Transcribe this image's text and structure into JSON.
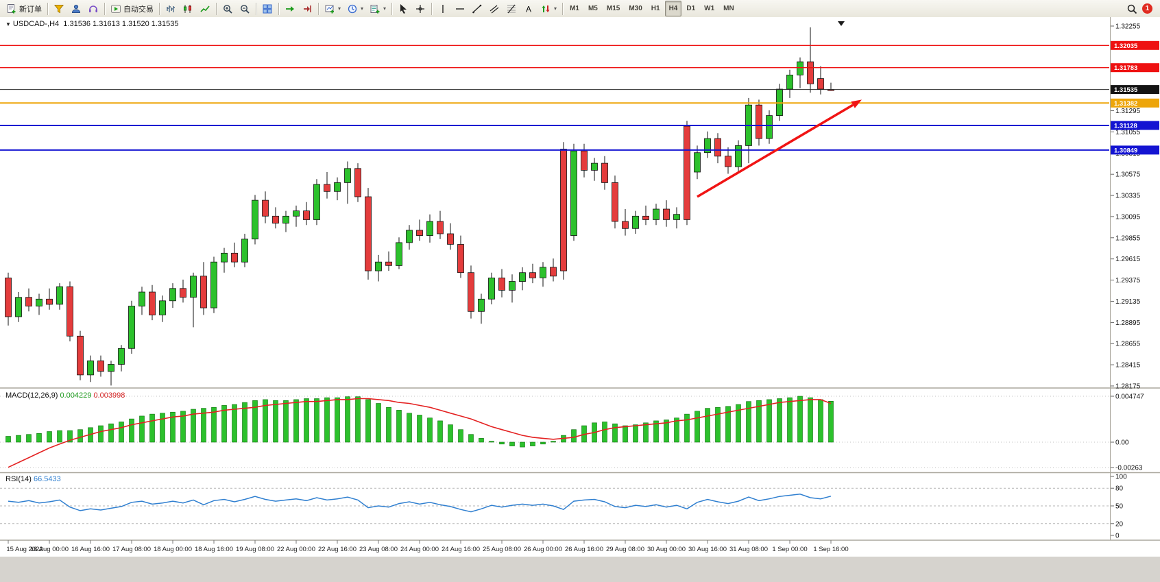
{
  "toolbar": {
    "buttons": [
      {
        "name": "new-order-button",
        "icon": "doc-plus",
        "label": "新订单"
      },
      {
        "name": "favorites-button",
        "icon": "funnel",
        "sep_before": true
      },
      {
        "name": "profile-button",
        "icon": "person"
      },
      {
        "name": "market-sound-button",
        "icon": "headset"
      },
      {
        "name": "autotrading-button",
        "icon": "play-auto",
        "label": "自动交易",
        "sep_before": true
      },
      {
        "name": "bar-chart-button",
        "icon": "bars-chart",
        "sep_before": true
      },
      {
        "name": "candle-chart-button",
        "icon": "candles-chart"
      },
      {
        "name": "line-chart-button",
        "icon": "line-chart"
      },
      {
        "name": "zoom-in-button",
        "icon": "zoom-in",
        "sep_before": true
      },
      {
        "name": "zoom-out-button",
        "icon": "zoom-out"
      },
      {
        "name": "tile-windows-button",
        "icon": "tile",
        "sep_before": true
      },
      {
        "name": "auto-scroll-button",
        "icon": "autoscroll",
        "sep_before": true
      },
      {
        "name": "chart-shift-button",
        "icon": "shift"
      },
      {
        "name": "new-chart-button",
        "icon": "plus-chart",
        "caret": true,
        "sep_before": true
      },
      {
        "name": "profiles-button",
        "icon": "clock",
        "caret": true
      },
      {
        "name": "indicators-button",
        "icon": "indicator-list",
        "caret": true
      },
      {
        "name": "cursor-button",
        "icon": "cursor",
        "sep_before": true
      },
      {
        "name": "crosshair-button",
        "icon": "crosshair"
      },
      {
        "name": "vertical-line-button",
        "icon": "vline",
        "sep_before": true
      },
      {
        "name": "horizontal-line-button",
        "icon": "hline"
      },
      {
        "name": "trendline-button",
        "icon": "trendline"
      },
      {
        "name": "channel-button",
        "icon": "channel"
      },
      {
        "name": "fibonacci-button",
        "icon": "fibo"
      },
      {
        "name": "text-button",
        "icon": "text"
      },
      {
        "name": "arrows-button",
        "icon": "arrows",
        "caret": true
      }
    ],
    "timeframes": [
      "M1",
      "M5",
      "M15",
      "M30",
      "H1",
      "H4",
      "D1",
      "W1",
      "MN"
    ],
    "active_timeframe": "H4",
    "notification_count": "1"
  },
  "chart": {
    "symbol_period": "USDCAD-,H4",
    "ohlc_text": "1.31536 1.31613 1.31520 1.31535"
  },
  "chart_data": {
    "type": "candlestick",
    "symbol": "USDCAD",
    "timeframe": "H4",
    "y_axis": {
      "max": 1.32255,
      "min": 1.28175,
      "step": 0.0024,
      "decimals": 5
    },
    "x_labels": [
      "15 Aug 2022",
      "16 Aug 00:00",
      "16 Aug 16:00",
      "17 Aug 08:00",
      "18 Aug 00:00",
      "18 Aug 16:00",
      "19 Aug 08:00",
      "22 Aug 00:00",
      "22 Aug 16:00",
      "23 Aug 08:00",
      "24 Aug 00:00",
      "24 Aug 16:00",
      "25 Aug 08:00",
      "26 Aug 00:00",
      "26 Aug 16:00",
      "29 Aug 08:00",
      "30 Aug 00:00",
      "30 Aug 16:00",
      "31 Aug 08:00",
      "1 Sep 00:00",
      "1 Sep 16:00"
    ],
    "x_label_every": 4,
    "ohlc": [
      [
        1.294,
        1.2946,
        1.2886,
        1.2896
      ],
      [
        1.2896,
        1.2924,
        1.289,
        1.2918
      ],
      [
        1.2918,
        1.2928,
        1.2902,
        1.2908
      ],
      [
        1.2908,
        1.2922,
        1.2898,
        1.2916
      ],
      [
        1.2916,
        1.2928,
        1.2904,
        1.291
      ],
      [
        1.291,
        1.2934,
        1.2904,
        1.293
      ],
      [
        1.293,
        1.2936,
        1.2868,
        1.2874
      ],
      [
        1.2874,
        1.288,
        1.2824,
        1.283
      ],
      [
        1.283,
        1.2852,
        1.2822,
        1.2846
      ],
      [
        1.2846,
        1.2852,
        1.2828,
        1.2834
      ],
      [
        1.2834,
        1.2846,
        1.2818,
        1.2842
      ],
      [
        1.2842,
        1.2864,
        1.2834,
        1.286
      ],
      [
        1.286,
        1.2914,
        1.2854,
        1.2908
      ],
      [
        1.2908,
        1.293,
        1.2898,
        1.2924
      ],
      [
        1.2924,
        1.2932,
        1.2892,
        1.2898
      ],
      [
        1.2898,
        1.292,
        1.289,
        1.2914
      ],
      [
        1.2914,
        1.2934,
        1.2906,
        1.2928
      ],
      [
        1.2928,
        1.2938,
        1.2912,
        1.2918
      ],
      [
        1.2918,
        1.2946,
        1.2884,
        1.2942
      ],
      [
        1.2942,
        1.2958,
        1.2898,
        1.2906
      ],
      [
        1.2906,
        1.2964,
        1.29,
        1.2958
      ],
      [
        1.2958,
        1.2974,
        1.2946,
        1.2968
      ],
      [
        1.2968,
        1.298,
        1.2952,
        1.2958
      ],
      [
        1.2958,
        1.299,
        1.2952,
        1.2984
      ],
      [
        1.2984,
        1.3034,
        1.2978,
        1.3028
      ],
      [
        1.3028,
        1.3038,
        1.3002,
        1.301
      ],
      [
        1.301,
        1.302,
        1.2996,
        1.3002
      ],
      [
        1.3002,
        1.3016,
        1.2992,
        1.301
      ],
      [
        1.301,
        1.3022,
        1.2998,
        1.3016
      ],
      [
        1.3016,
        1.3026,
        1.3,
        1.3006
      ],
      [
        1.3006,
        1.3052,
        1.3,
        1.3046
      ],
      [
        1.3046,
        1.306,
        1.303,
        1.3038
      ],
      [
        1.3038,
        1.3054,
        1.3028,
        1.3048
      ],
      [
        1.3048,
        1.3072,
        1.3024,
        1.3064
      ],
      [
        1.3064,
        1.307,
        1.3026,
        1.3032
      ],
      [
        1.3032,
        1.3042,
        1.2938,
        1.2948
      ],
      [
        1.2948,
        1.2966,
        1.2936,
        1.2958
      ],
      [
        1.2958,
        1.297,
        1.2948,
        1.2954
      ],
      [
        1.2954,
        1.2986,
        1.295,
        1.298
      ],
      [
        1.298,
        1.3,
        1.2972,
        1.2994
      ],
      [
        1.2994,
        1.3006,
        1.2982,
        1.2988
      ],
      [
        1.2988,
        1.3012,
        1.298,
        1.3004
      ],
      [
        1.3004,
        1.3016,
        1.2984,
        1.299
      ],
      [
        1.299,
        1.3002,
        1.2972,
        1.2978
      ],
      [
        1.2978,
        1.2988,
        1.294,
        1.2946
      ],
      [
        1.2946,
        1.2954,
        1.2894,
        1.2902
      ],
      [
        1.2902,
        1.2922,
        1.2888,
        1.2916
      ],
      [
        1.2916,
        1.2946,
        1.291,
        1.294
      ],
      [
        1.294,
        1.295,
        1.2918,
        1.2926
      ],
      [
        1.2926,
        1.2944,
        1.2912,
        1.2936
      ],
      [
        1.2936,
        1.2952,
        1.2926,
        1.2946
      ],
      [
        1.2946,
        1.2956,
        1.2934,
        1.294
      ],
      [
        1.294,
        1.2958,
        1.293,
        1.2952
      ],
      [
        1.2952,
        1.2962,
        1.2936,
        1.2942
      ],
      [
        1.3086,
        1.3094,
        1.2938,
        1.2948
      ],
      [
        1.2988,
        1.3092,
        1.2982,
        1.3084
      ],
      [
        1.3084,
        1.3092,
        1.3054,
        1.3062
      ],
      [
        1.3062,
        1.3076,
        1.305,
        1.307
      ],
      [
        1.307,
        1.3078,
        1.304,
        1.3048
      ],
      [
        1.3048,
        1.3056,
        1.2996,
        1.3004
      ],
      [
        1.3004,
        1.3018,
        1.2988,
        1.2996
      ],
      [
        1.2996,
        1.3016,
        1.299,
        1.301
      ],
      [
        1.301,
        1.3022,
        1.3,
        1.3006
      ],
      [
        1.3006,
        1.3024,
        1.3,
        1.3018
      ],
      [
        1.3018,
        1.3028,
        1.2998,
        1.3006
      ],
      [
        1.3006,
        1.302,
        1.2996,
        1.3012
      ],
      [
        1.3112,
        1.3118,
        1.3,
        1.3006
      ],
      [
        1.306,
        1.309,
        1.3052,
        1.3082
      ],
      [
        1.3082,
        1.3106,
        1.3076,
        1.3098
      ],
      [
        1.3098,
        1.3104,
        1.307,
        1.3078
      ],
      [
        1.3078,
        1.3088,
        1.3058,
        1.3066
      ],
      [
        1.3066,
        1.3096,
        1.306,
        1.309
      ],
      [
        1.309,
        1.3144,
        1.307,
        1.3136
      ],
      [
        1.3136,
        1.3142,
        1.309,
        1.3098
      ],
      [
        1.3098,
        1.313,
        1.3092,
        1.3124
      ],
      [
        1.3124,
        1.316,
        1.3118,
        1.3154
      ],
      [
        1.3154,
        1.3176,
        1.3144,
        1.317
      ],
      [
        1.317,
        1.319,
        1.3155,
        1.3185
      ],
      [
        1.3185,
        1.3224,
        1.315,
        1.316
      ],
      [
        1.3166,
        1.318,
        1.3148,
        1.3154
      ],
      [
        1.31536,
        1.31613,
        1.3152,
        1.31535
      ]
    ],
    "hlines": [
      {
        "price": 1.32035,
        "label": "1.32035",
        "color": "#ee1111",
        "width": 1.4
      },
      {
        "price": 1.31783,
        "label": "1.31783",
        "color": "#ee1111",
        "width": 1.4
      },
      {
        "price": 1.31535,
        "label": "1.31535",
        "color": "#2b2b2b",
        "width": 1,
        "current": true
      },
      {
        "price": 1.31382,
        "label": "1.31382",
        "color": "#eda50a",
        "width": 2
      },
      {
        "price": 1.31128,
        "label": "1.31128",
        "color": "#1414d2",
        "width": 2
      },
      {
        "price": 1.30849,
        "label": "1.30849",
        "color": "#1414d2",
        "width": 2
      }
    ],
    "current_price": 1.31535,
    "arrow": {
      "color": "#f01414",
      "from": {
        "index": 67,
        "price": 1.3032
      },
      "to": {
        "index": 83,
        "price": 1.3142
      }
    },
    "scroll_end_marker_index": 81,
    "macd": {
      "label": "MACD(12,26,9)",
      "value_main": "0.004229",
      "value_signal": "0.003998",
      "axis": [
        {
          "v": 0.004747,
          "label": "0.004747"
        },
        {
          "v": 0,
          "label": "0.00"
        },
        {
          "v": -0.00263,
          "label": "-0.00263"
        }
      ],
      "histogram": [
        0.0006,
        0.0007,
        0.0008,
        0.0009,
        0.0011,
        0.0012,
        0.0012,
        0.0013,
        0.0015,
        0.0017,
        0.0019,
        0.0021,
        0.0024,
        0.0027,
        0.0029,
        0.003,
        0.0031,
        0.0032,
        0.0034,
        0.0035,
        0.0036,
        0.0038,
        0.0039,
        0.0041,
        0.0043,
        0.0044,
        0.0043,
        0.0043,
        0.0044,
        0.0045,
        0.0045,
        0.0046,
        0.0046,
        0.0047,
        0.0047,
        0.0044,
        0.004,
        0.0036,
        0.0033,
        0.003,
        0.0028,
        0.0025,
        0.0022,
        0.0018,
        0.0013,
        0.0008,
        0.0004,
        0.0001,
        -0.0002,
        -0.0004,
        -0.0005,
        -0.0004,
        -0.0002,
        0.0001,
        0.0007,
        0.0013,
        0.0017,
        0.002,
        0.0021,
        0.0019,
        0.0017,
        0.0018,
        0.002,
        0.0022,
        0.0023,
        0.0025,
        0.0029,
        0.0032,
        0.0035,
        0.0036,
        0.0037,
        0.0039,
        0.0042,
        0.0043,
        0.0044,
        0.0045,
        0.0046,
        0.00475,
        0.0046,
        0.0044,
        0.00423
      ],
      "signal": [
        -0.0026,
        -0.0021,
        -0.0016,
        -0.0011,
        -0.0006,
        -0.0002,
        0.0002,
        0.0005,
        0.0008,
        0.0011,
        0.0013,
        0.0015,
        0.0018,
        0.002,
        0.0022,
        0.0024,
        0.0026,
        0.0027,
        0.0029,
        0.003,
        0.0031,
        0.0033,
        0.0034,
        0.0035,
        0.0036,
        0.0038,
        0.0039,
        0.004,
        0.0041,
        0.0042,
        0.0042,
        0.0043,
        0.0044,
        0.0044,
        0.0045,
        0.0045,
        0.0044,
        0.0043,
        0.0041,
        0.004,
        0.0038,
        0.0036,
        0.0033,
        0.003,
        0.0027,
        0.0024,
        0.002,
        0.0016,
        0.0013,
        0.001,
        0.0007,
        0.0005,
        0.0004,
        0.0003,
        0.0004,
        0.0005,
        0.0008,
        0.001,
        0.0013,
        0.0015,
        0.0016,
        0.0017,
        0.0018,
        0.0019,
        0.002,
        0.0022,
        0.0023,
        0.0025,
        0.0027,
        0.0029,
        0.0031,
        0.0033,
        0.0035,
        0.0037,
        0.0039,
        0.0041,
        0.0042,
        0.0043,
        0.0044,
        0.0044,
        0.004
      ]
    },
    "rsi": {
      "label": "RSI(14)",
      "value": "66.5433",
      "levels": {
        "labels": [
          "100",
          "80",
          "50",
          "20",
          "0"
        ],
        "values": [
          100,
          80,
          50,
          20,
          0
        ],
        "dashed": [
          80,
          50,
          20
        ]
      },
      "series": [
        58,
        56,
        59,
        55,
        57,
        60,
        48,
        42,
        45,
        43,
        46,
        49,
        56,
        58,
        53,
        55,
        58,
        55,
        60,
        52,
        59,
        61,
        57,
        61,
        66,
        61,
        58,
        60,
        62,
        59,
        64,
        60,
        62,
        65,
        60,
        47,
        50,
        48,
        54,
        57,
        53,
        56,
        52,
        49,
        44,
        40,
        45,
        51,
        48,
        51,
        53,
        51,
        53,
        50,
        44,
        58,
        60,
        61,
        57,
        49,
        47,
        51,
        49,
        52,
        48,
        51,
        45,
        56,
        61,
        57,
        54,
        58,
        65,
        59,
        62,
        66,
        68,
        70,
        64,
        62,
        66.5
      ]
    },
    "colors": {
      "bull": "#2cc12c",
      "bear": "#e43c3c",
      "wick": "#111111",
      "macd_bar": "#2cc12c",
      "macd_signal": "#e42222",
      "rsi_line": "#2f7fd0"
    }
  }
}
